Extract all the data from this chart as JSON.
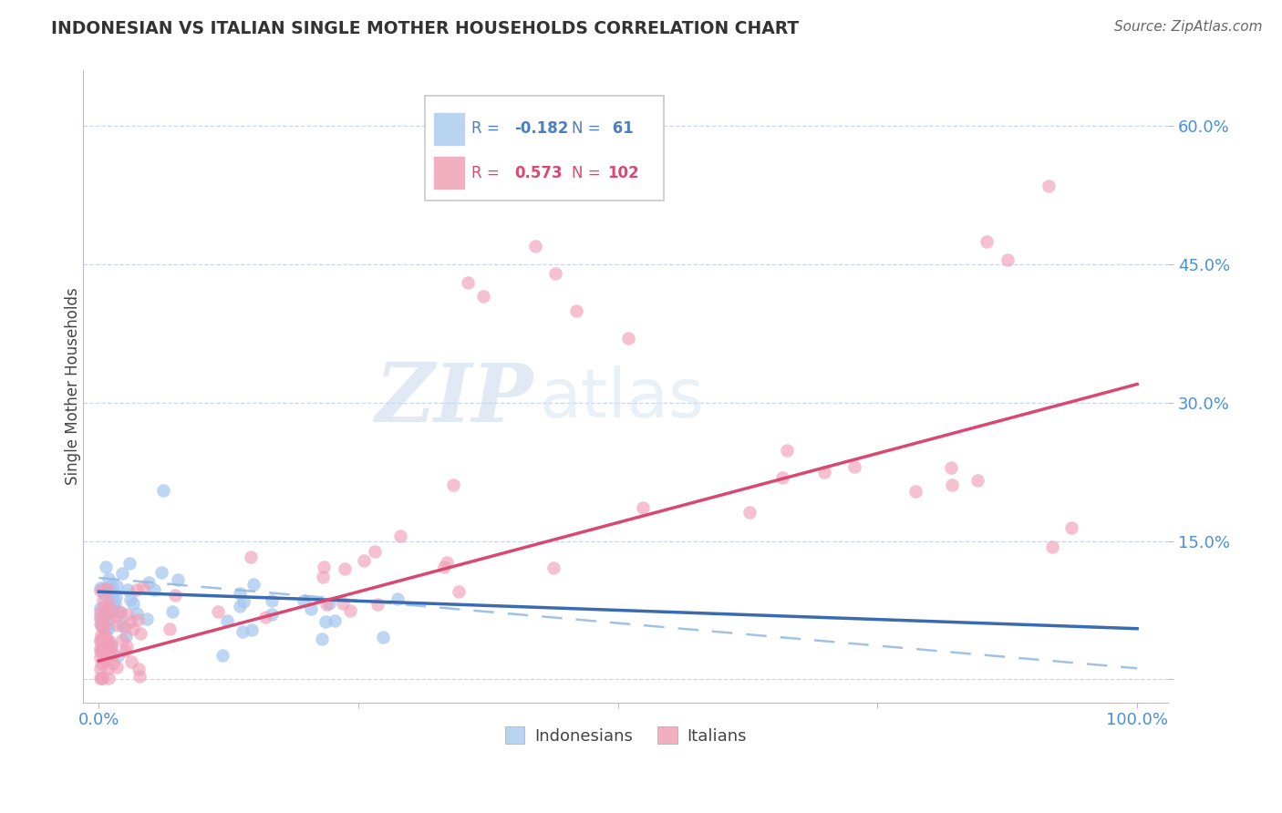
{
  "title": "INDONESIAN VS ITALIAN SINGLE MOTHER HOUSEHOLDS CORRELATION CHART",
  "source": "Source: ZipAtlas.com",
  "tick_color": "#4a90d9",
  "ylabel": "Single Mother Households",
  "indonesian_R": -0.182,
  "indonesian_N": 61,
  "italian_R": 0.573,
  "italian_N": 102,
  "blue_scatter_color": "#a8c8f0",
  "pink_scatter_color": "#f0a0b8",
  "blue_line_color": "#3a6ab0",
  "pink_line_color": "#d84870",
  "blue_dash_color": "#90b8e0",
  "watermark_zip": "ZIP",
  "watermark_atlas": "atlas",
  "background_color": "#ffffff",
  "grid_color": "#c8d8e8",
  "blue_legend_color": "#4a7fc0",
  "pink_legend_color": "#d84870",
  "blue_box_color": "#b8d4f0",
  "pink_box_color": "#f0b0c0"
}
